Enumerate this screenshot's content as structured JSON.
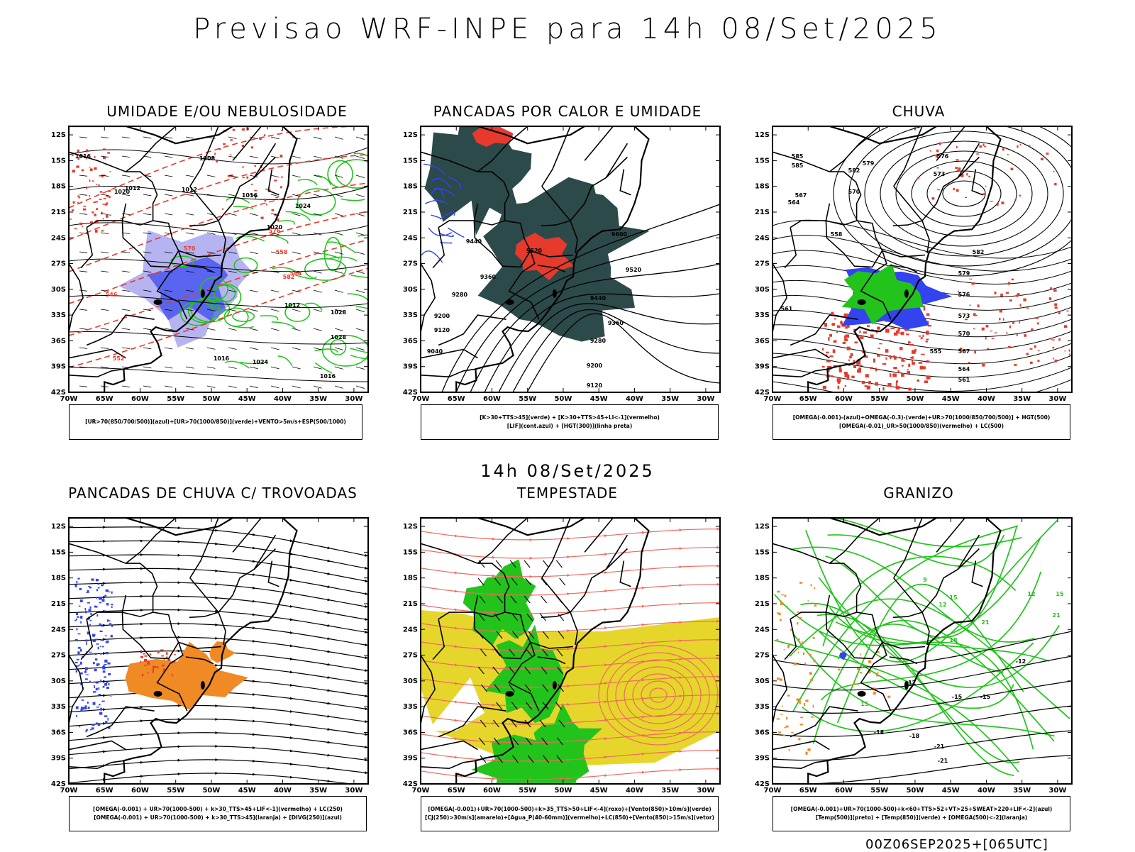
{
  "header": {
    "title": "Previsao WRF-INPE  para 14h 08/Set/2025",
    "subtitle": "14h 08/Set/2025",
    "footer": "00Z06SEP2025+[065UTC]"
  },
  "axes": {
    "lat_ticks": [
      "12S",
      "15S",
      "18S",
      "21S",
      "24S",
      "27S",
      "30S",
      "33S",
      "36S",
      "39S",
      "42S"
    ],
    "lon_ticks": [
      "70W",
      "65W",
      "60W",
      "55W",
      "50W",
      "45W",
      "40W",
      "35W",
      "30W"
    ]
  },
  "panels": [
    {
      "id": "umidade",
      "title": "UMIDADE E/OU NEBULOSIDADE",
      "legend": [
        "[UR>70(850/700/500)](azul)+[UR>70(1000/850)](verde)+VENTO>5m/s+ESP(500/1000)"
      ],
      "contour_labels": [
        "1012",
        "1008",
        "1012",
        "1016",
        "1020",
        "1024",
        "1028",
        "1016",
        "1016",
        "1020",
        "1012",
        "1024",
        "1028",
        "1016",
        "546",
        "552",
        "558",
        "564",
        "570",
        "576",
        "582"
      ]
    },
    {
      "id": "pancadas-calor",
      "title": "PANCADAS POR CALOR E UMIDADE",
      "legend": [
        "[K>30+TTS>45](verde) + [K>30+TTS>45+LI<-1](vermelho)",
        "[LIF](cont.azul) + [HGT(300)](linha preta)"
      ],
      "contour_labels": [
        "9600",
        "9520",
        "9440",
        "9360",
        "9280",
        "9200",
        "9120",
        "9040",
        "9520",
        "9440",
        "9360",
        "9280",
        "9200",
        "9120"
      ]
    },
    {
      "id": "chuva",
      "title": "CHUVA",
      "legend": [
        "[OMEGA(-0.001)-(azul)+OMEGA(-0.3)-(verde)+UR>70(1000/850/700/500)] + HGT(500)",
        "[OMEGA(-0.01)_UR>50(1000/850)(vermelho) + LC(500)"
      ],
      "contour_labels": [
        "585",
        "582",
        "579",
        "576",
        "573",
        "570",
        "567",
        "564",
        "561",
        "558",
        "555",
        "582",
        "579",
        "576",
        "573",
        "570",
        "567",
        "564",
        "561",
        "585"
      ]
    },
    {
      "id": "trovoadas",
      "title": "PANCADAS DE CHUVA C/ TROVOADAS",
      "legend": [
        "[OMEGA(-0.001) + UR>70(1000-500) + k>30_TTS>45+LIF<-1](vermelho) + LC(250)",
        "[OMEGA(-0.001) + UR>70(1000-500) + k>30_TTS>45](laranja) + [DIVG(250)](azul)"
      ],
      "contour_labels": []
    },
    {
      "id": "tempestade",
      "title": "TEMPESTADE",
      "legend": [
        "[OMEGA(-0.001)+UR>70(1000-500)+k>35_TTS>50+LIF<-4](roxo)+[Vento(850)>10m/s](verde)",
        "[CJ(250)>30m/s](amarelo)+[Agua_P(40-60mm)](vermelho)+LC(850)+[Vento(850)>15m/s](vetor)"
      ],
      "contour_labels": []
    },
    {
      "id": "granizo",
      "title": "GRANIZO",
      "legend": [
        "[OMEGA(-0.001)+UR>70(1000-500)+k<60+TTS>52+VT>25+SWEAT>220+LIF<-2](azul)",
        "[Temp(500)](preto) + [Temp(850)](verde) + [OMEGA(500)<-2](laranja)"
      ],
      "contour_labels": [
        "-12",
        "-15",
        "-18",
        "-21",
        "-12",
        "-15",
        "-18",
        "-21",
        "15",
        "12",
        "9",
        "21",
        "18",
        "15",
        "12",
        "21",
        "15"
      ]
    }
  ],
  "colors": {
    "green": "#22c41c",
    "red": "#e53a2c",
    "blue": "#3344ee",
    "lavender": "#a9a6ee",
    "darkteal": "#2c4a4a",
    "orange": "#f08a24",
    "yellow": "#e6d62c",
    "salmon": "#f0695c"
  }
}
